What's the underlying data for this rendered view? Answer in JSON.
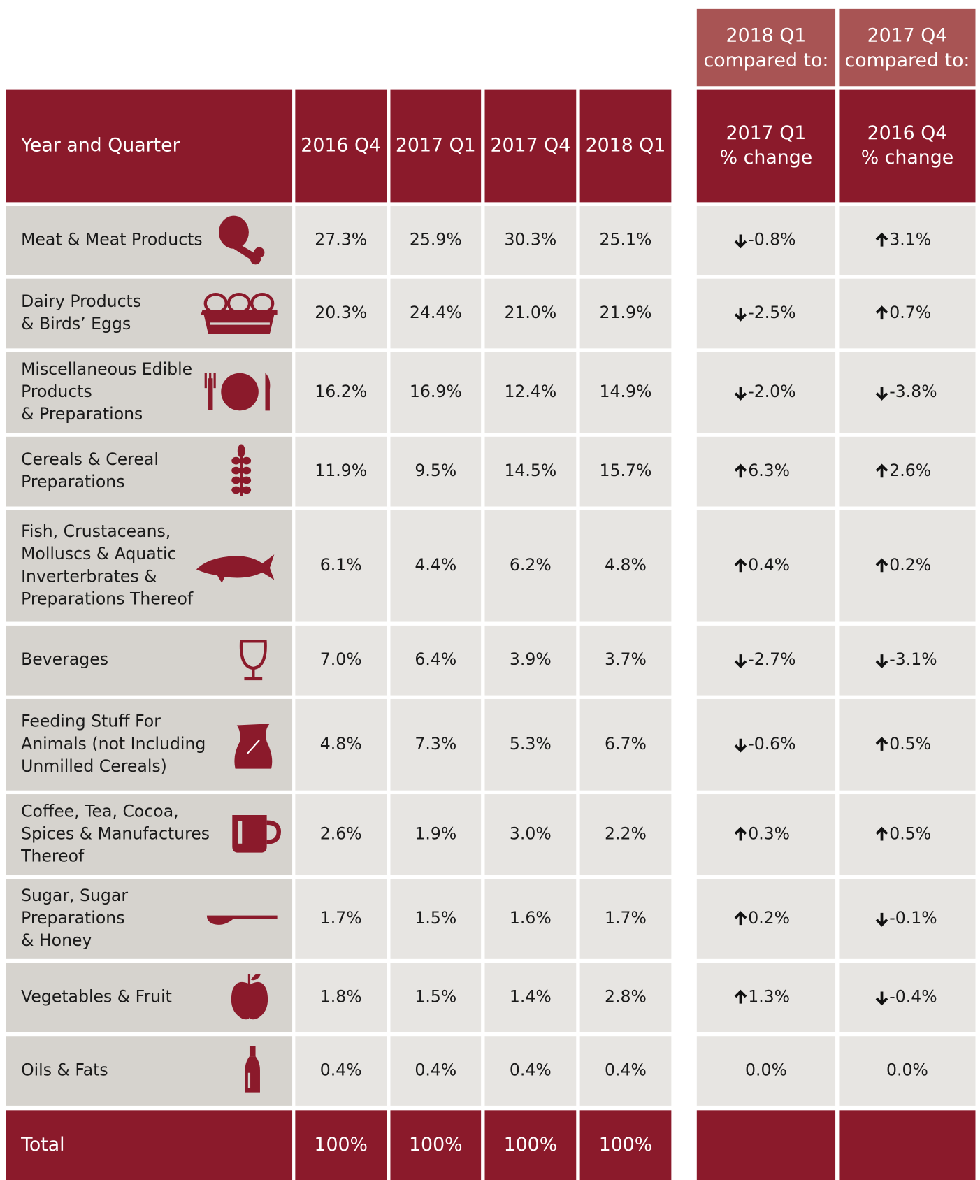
{
  "table": {
    "top_headers": [
      [
        "2018 Q1",
        "compared to:"
      ],
      [
        "2017 Q4",
        "compared to:"
      ]
    ],
    "headers": [
      [
        "Year and Quarter"
      ],
      [
        "2016 Q4"
      ],
      [
        "2017 Q1"
      ],
      [
        "2017 Q4"
      ],
      [
        "2018 Q1"
      ],
      [
        "2017 Q1",
        "% change"
      ],
      [
        "2016 Q4",
        "% change"
      ]
    ],
    "rows": [
      {
        "label": [
          "Meat & Meat Products"
        ],
        "values": [
          "27.3%",
          "25.9%",
          "30.3%",
          "25.1%"
        ],
        "changes": [
          {
            "text": "-0.8%",
            "arrow": "down"
          },
          {
            "text": "3.1%",
            "arrow": "up"
          }
        ]
      },
      {
        "label": [
          "Dairy Products",
          "& Birds’ Eggs"
        ],
        "values": [
          "20.3%",
          "24.4%",
          "21.0%",
          "21.9%"
        ],
        "changes": [
          {
            "text": "-2.5%",
            "arrow": "down"
          },
          {
            "text": "0.7%",
            "arrow": "up"
          }
        ]
      },
      {
        "label": [
          "Miscellaneous Edible",
          "Products",
          "& Preparations"
        ],
        "values": [
          "16.2%",
          "16.9%",
          "12.4%",
          "14.9%"
        ],
        "changes": [
          {
            "text": "-2.0%",
            "arrow": "down"
          },
          {
            "text": "-3.8%",
            "arrow": "down"
          }
        ]
      },
      {
        "label": [
          "Cereals & Cereal",
          "Preparations"
        ],
        "values": [
          "11.9%",
          "9.5%",
          "14.5%",
          "15.7%"
        ],
        "changes": [
          {
            "text": "6.3%",
            "arrow": "up"
          },
          {
            "text": "2.6%",
            "arrow": "up"
          }
        ]
      },
      {
        "label": [
          "Fish, Crustaceans,",
          "Molluscs & Aquatic",
          "Inverterbrates &",
          "Preparations Thereof"
        ],
        "values": [
          "6.1%",
          "4.4%",
          "6.2%",
          "4.8%"
        ],
        "changes": [
          {
            "text": "0.4%",
            "arrow": "up"
          },
          {
            "text": "0.2%",
            "arrow": "up"
          }
        ]
      },
      {
        "label": [
          "Beverages"
        ],
        "values": [
          "7.0%",
          "6.4%",
          "3.9%",
          "3.7%"
        ],
        "changes": [
          {
            "text": "-2.7%",
            "arrow": "down"
          },
          {
            "text": "-3.1%",
            "arrow": "down"
          }
        ]
      },
      {
        "label": [
          "Feeding Stuff For",
          "Animals (not Including",
          "Unmilled Cereals)"
        ],
        "values": [
          "4.8%",
          "7.3%",
          "5.3%",
          "6.7%"
        ],
        "changes": [
          {
            "text": "-0.6%",
            "arrow": "down"
          },
          {
            "text": "0.5%",
            "arrow": "up"
          }
        ]
      },
      {
        "label": [
          "Coffee, Tea, Cocoa,",
          "Spices & Manufactures",
          "Thereof"
        ],
        "values": [
          "2.6%",
          "1.9%",
          "3.0%",
          "2.2%"
        ],
        "changes": [
          {
            "text": "0.3%",
            "arrow": "up"
          },
          {
            "text": "0.5%",
            "arrow": "up"
          }
        ]
      },
      {
        "label": [
          "Sugar, Sugar",
          "Preparations",
          "& Honey"
        ],
        "values": [
          "1.7%",
          "1.5%",
          "1.6%",
          "1.7%"
        ],
        "changes": [
          {
            "text": "0.2%",
            "arrow": "up"
          },
          {
            "text": "-0.1%",
            "arrow": "down"
          }
        ]
      },
      {
        "label": [
          "Vegetables & Fruit"
        ],
        "values": [
          "1.8%",
          "1.5%",
          "1.4%",
          "2.8%"
        ],
        "changes": [
          {
            "text": "1.3%",
            "arrow": "up"
          },
          {
            "text": "-0.4%",
            "arrow": "down"
          }
        ]
      },
      {
        "label": [
          "Oils & Fats"
        ],
        "values": [
          "0.4%",
          "0.4%",
          "0.4%",
          "0.4%"
        ],
        "changes": [
          {
            "text": "0.0%"
          },
          {
            "text": "0.0%"
          }
        ]
      }
    ],
    "total": {
      "label": "Total",
      "values": [
        "100%",
        "100%",
        "100%",
        "100%"
      ]
    }
  }
}
